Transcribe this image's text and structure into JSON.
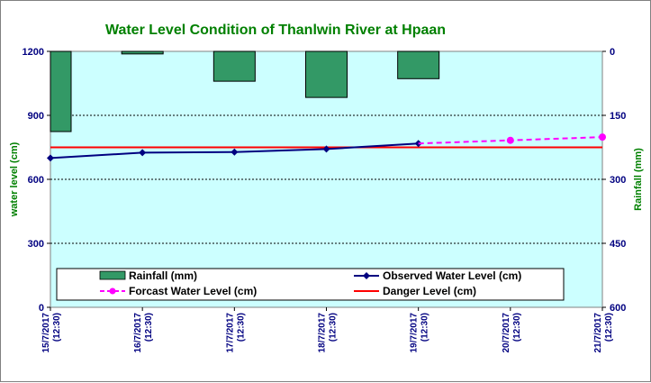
{
  "chart_data": {
    "type": "bar+line",
    "title": "Water Level Condition of Thanlwin River at Hpaan",
    "ylabel_left": "water level (cm)",
    "ylabel_right": "Rainfall (mm)",
    "ylim_left": [
      0,
      1200
    ],
    "yticks_left": [
      "0",
      "300",
      "600",
      "900",
      "1200"
    ],
    "ylim_right_inverted": [
      0,
      600
    ],
    "yticks_right": [
      "0",
      "150",
      "300",
      "450",
      "600"
    ],
    "categories": [
      "15/7/2017 (12:30)",
      "16/7/2017 (12:30)",
      "17/7/2017 (12:30)",
      "18/7/2017 (12:30)",
      "19/7/2017 (12:30)",
      "20/7/2017 (12:30)",
      "21/7/2017 (12:30)"
    ],
    "series": [
      {
        "name": "Rainfall (mm)",
        "kind": "bar",
        "axis": "right",
        "color": "#339966",
        "values": [
          188,
          6,
          70,
          108,
          64,
          null,
          null
        ]
      },
      {
        "name": "Observed Water Level (cm)",
        "kind": "line",
        "axis": "left",
        "color": "#000080",
        "values": [
          700,
          725,
          728,
          742,
          768,
          null,
          null
        ]
      },
      {
        "name": "Forcast Water Level (cm)",
        "kind": "dashed-line",
        "axis": "left",
        "color": "#ff00ff",
        "values": [
          null,
          null,
          null,
          null,
          768,
          783,
          798
        ]
      },
      {
        "name": "Danger Level (cm)",
        "kind": "hline",
        "axis": "left",
        "color": "#ff0000",
        "values": [
          750,
          750,
          750,
          750,
          750,
          750,
          750
        ]
      }
    ],
    "legend_position": "bottom-inside",
    "grid": "horizontal dotted",
    "plot_background": "#ccffff",
    "title_color": "#008000",
    "tick_color_left": "#000080"
  }
}
